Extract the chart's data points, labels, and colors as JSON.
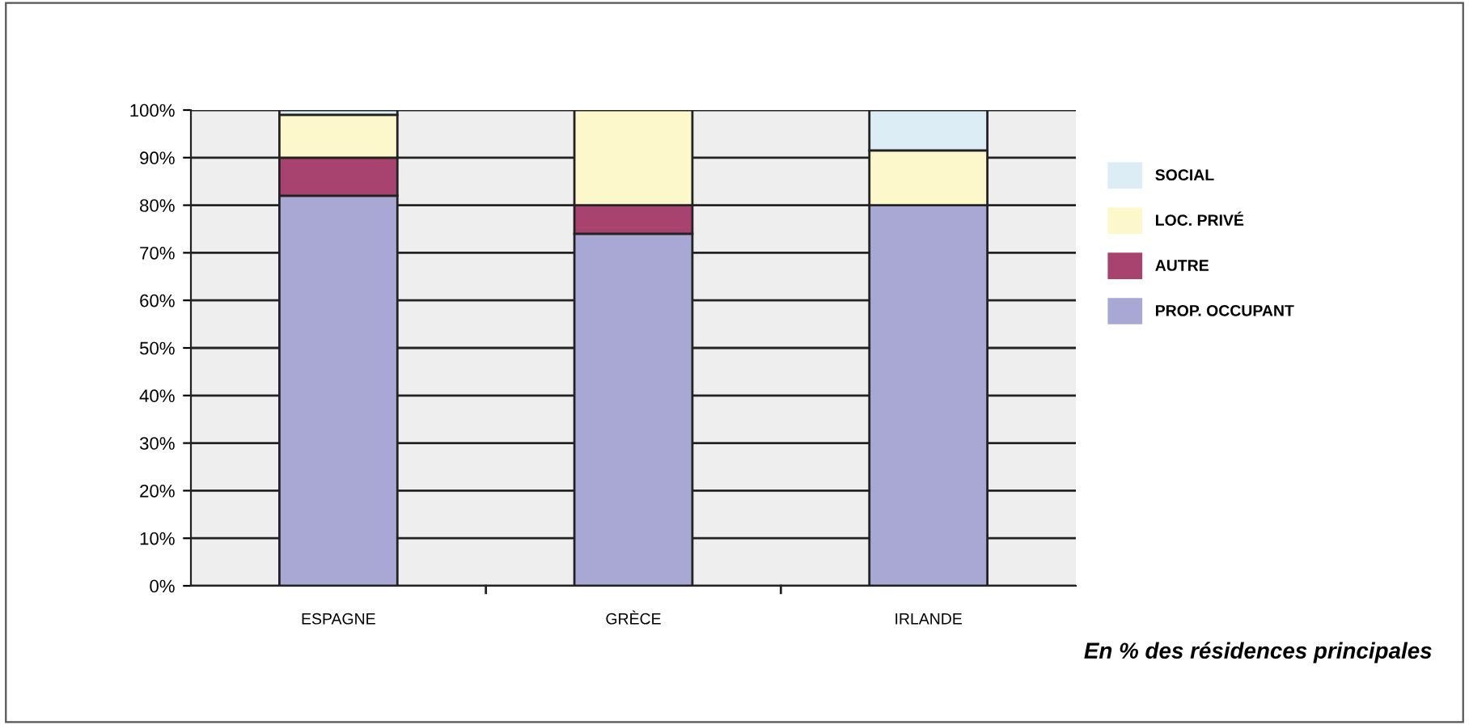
{
  "chart_data": {
    "type": "bar",
    "stacked": true,
    "categories": [
      "ESPAGNE",
      "GRÈCE",
      "IRLANDE"
    ],
    "series": [
      {
        "name": "PROP. OCCUPANT",
        "color": "#a9a8d4",
        "values": [
          82,
          74,
          80
        ]
      },
      {
        "name": "AUTRE",
        "color": "#a8426f",
        "values": [
          8,
          6,
          null
        ]
      },
      {
        "name": "LOC. PRIVÉ",
        "color": "#fdf7cc",
        "values": [
          9,
          20,
          11.5
        ]
      },
      {
        "name": "SOCIAL",
        "color": "#dcedf5",
        "values": [
          1,
          null,
          8.5
        ]
      }
    ],
    "ylim": [
      0,
      100
    ],
    "yticks": [
      {
        "value": 0,
        "label": "0%"
      },
      {
        "value": 10,
        "label": "10%"
      },
      {
        "value": 20,
        "label": "20%"
      },
      {
        "value": 30,
        "label": "30%"
      },
      {
        "value": 40,
        "label": "40%"
      },
      {
        "value": 50,
        "label": "50%"
      },
      {
        "value": 60,
        "label": "60%"
      },
      {
        "value": 70,
        "label": "70%"
      },
      {
        "value": 80,
        "label": "80%"
      },
      {
        "value": 90,
        "label": "90%"
      },
      {
        "value": 100,
        "label": "100%"
      }
    ],
    "grid": "y",
    "legend": "right",
    "annotations": [
      "En % des résidences principales"
    ]
  }
}
